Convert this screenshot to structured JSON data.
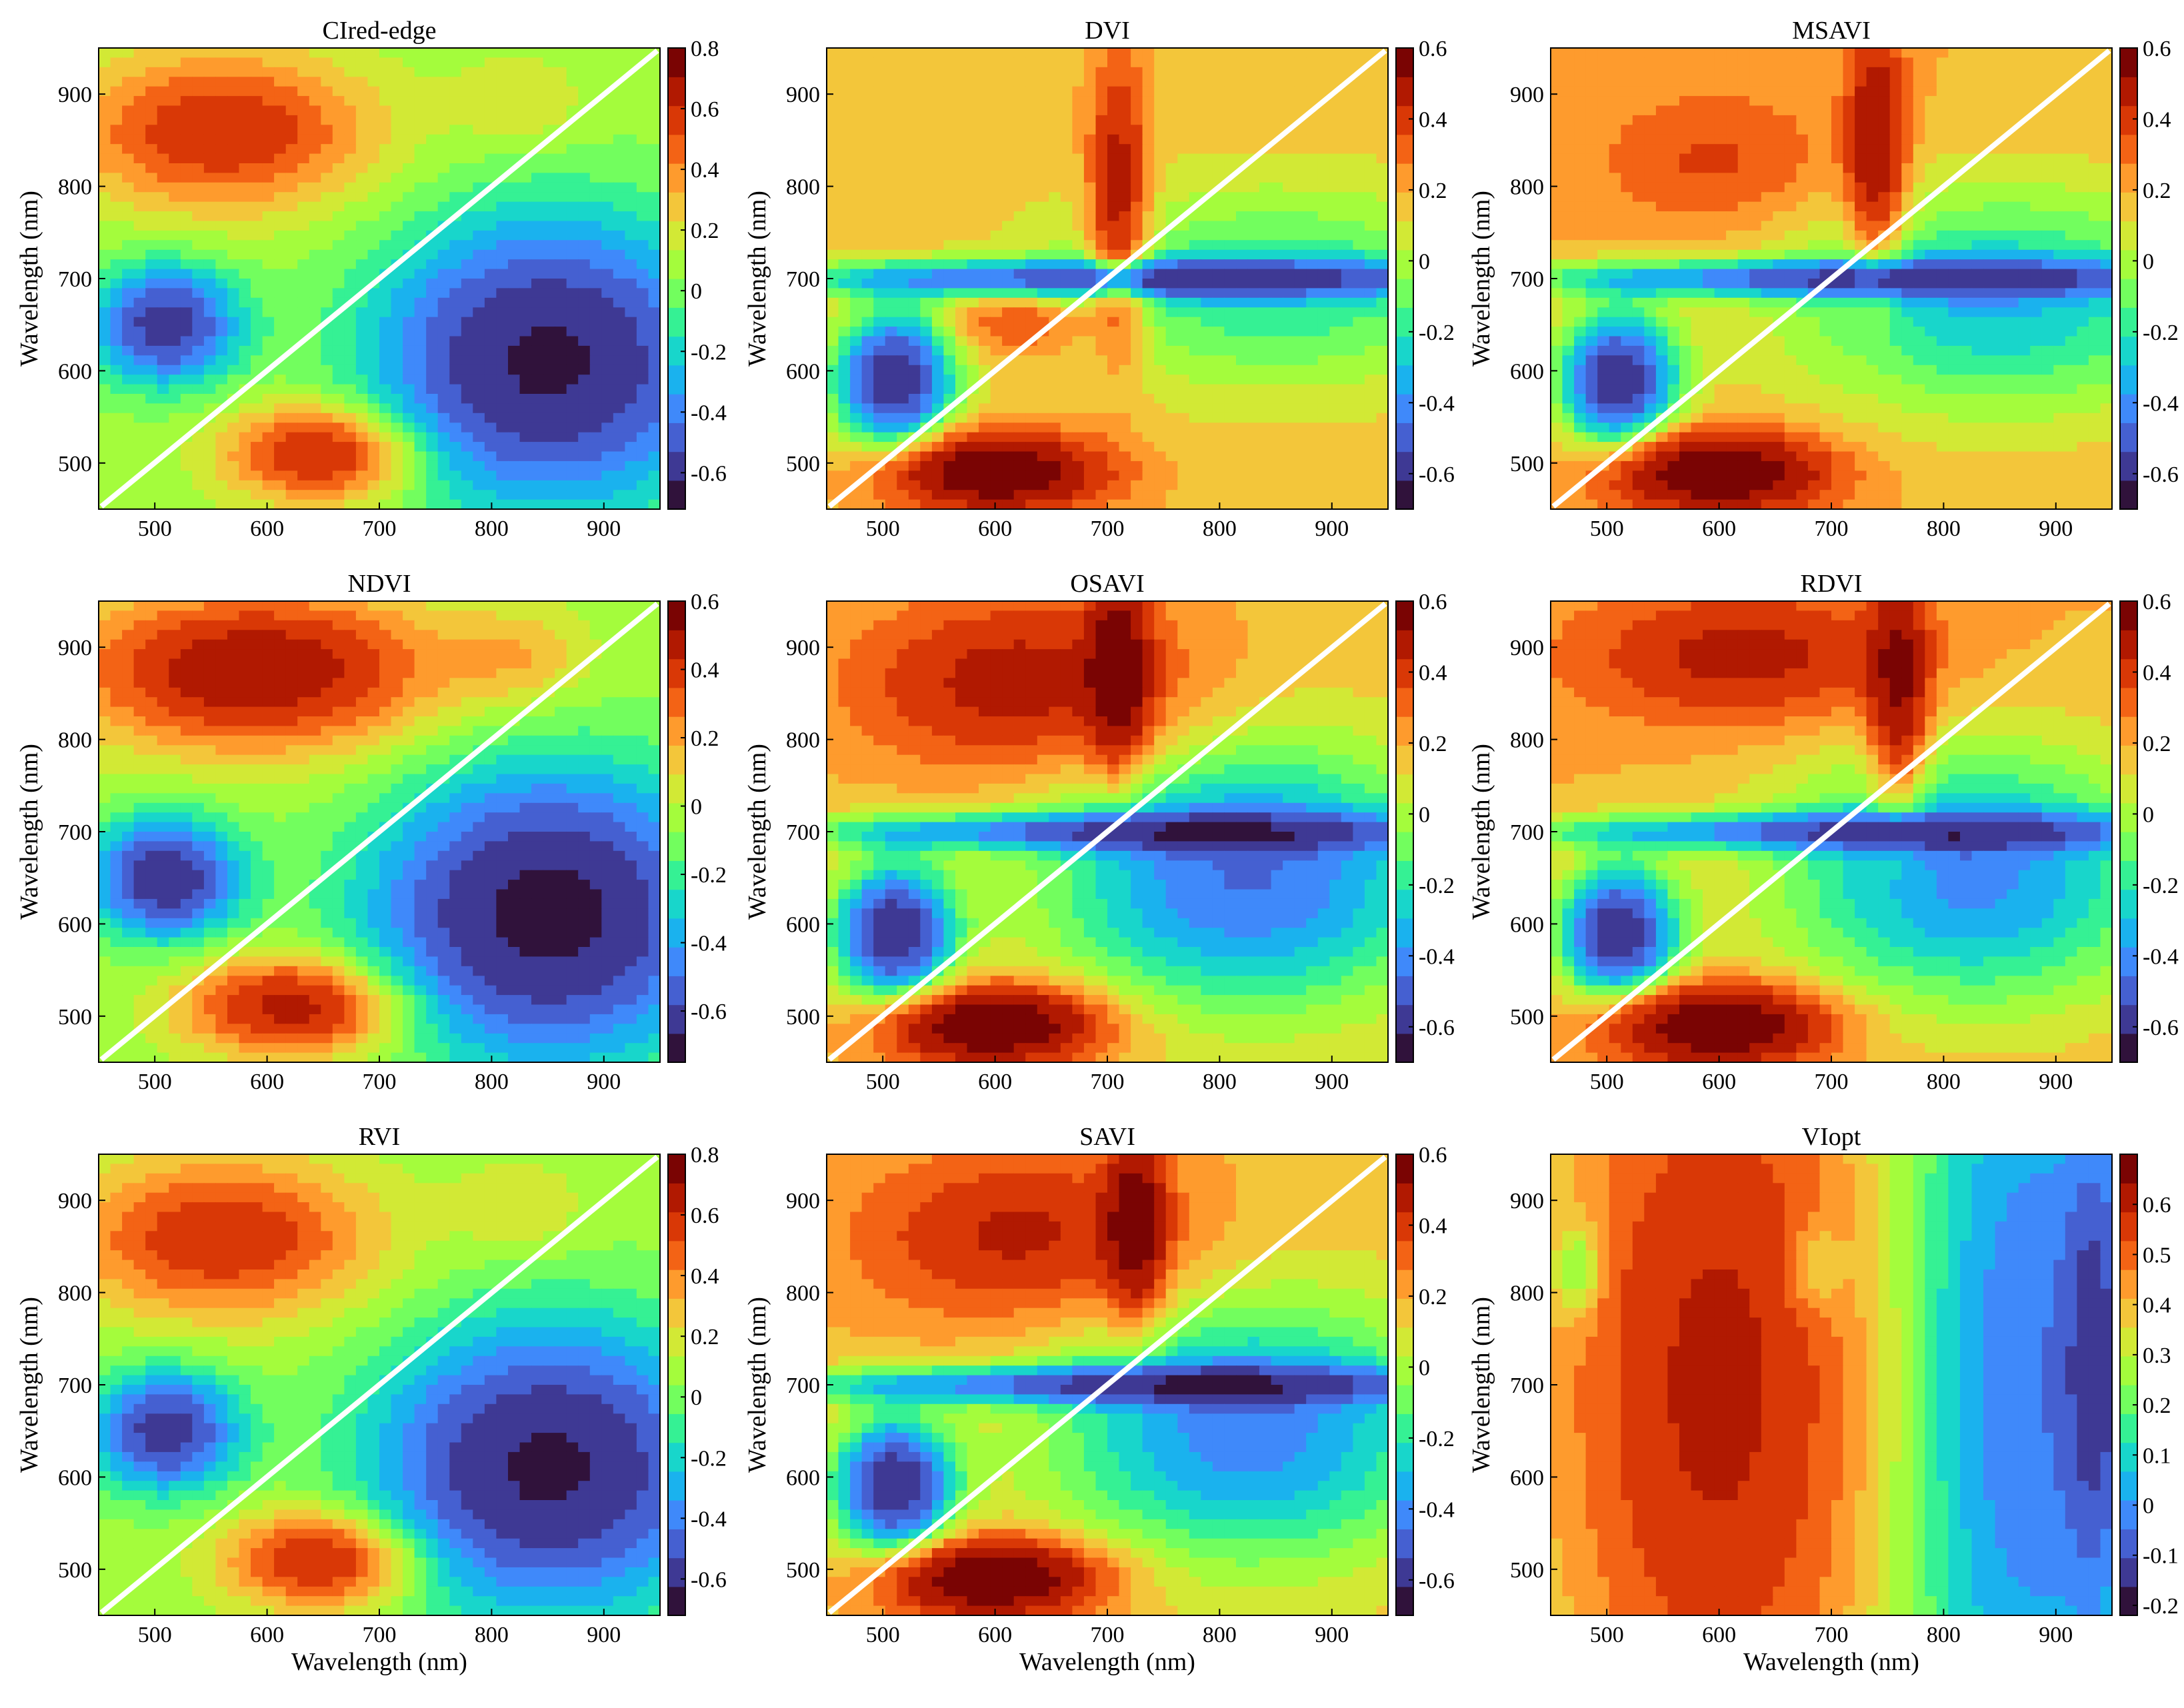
{
  "figure": {
    "x_axis_label": "Wavelength (nm)",
    "y_axis_label": "Wavelength (nm)"
  },
  "colormap": [
    "#30123b",
    "#3e3994",
    "#4560d1",
    "#3f89fa",
    "#1ab2ee",
    "#18d6cb",
    "#35f194",
    "#72fe5e",
    "#a4fc3c",
    "#d2e935",
    "#f3c63a",
    "#fe9b2d",
    "#f36315",
    "#d93806",
    "#b11901",
    "#7a0403"
  ],
  "chart_data": [
    {
      "type": "heatmap",
      "title": "CIred-edge",
      "x_ticks": [
        "500",
        "600",
        "700",
        "800",
        "900"
      ],
      "y_ticks": [
        "500",
        "600",
        "700",
        "800",
        "900"
      ],
      "xlim": [
        450,
        950
      ],
      "ylim": [
        450,
        950
      ],
      "colorbar_ticks": [
        "0.8",
        "0.6",
        "0.4",
        "0.2",
        "0",
        "-0.2",
        "-0.4",
        "-0.6"
      ],
      "colorbar_range": [
        -0.72,
        0.8
      ],
      "diagonal_separator": true,
      "show_xlabel": false,
      "show_ylabel": true,
      "regions_upper": "top-left red (~0.6), green/yellow near 800-950 x; right lower dark (~-0.7)",
      "regions_lower": "bottom orange/red (~0.5) x 480-720; left dark blue (~-0.7) y 560-720"
    },
    {
      "type": "heatmap",
      "title": "DVI",
      "x_ticks": [
        "500",
        "600",
        "700",
        "800",
        "900"
      ],
      "y_ticks": [
        "500",
        "600",
        "700",
        "800",
        "900"
      ],
      "xlim": [
        450,
        950
      ],
      "ylim": [
        450,
        950
      ],
      "colorbar_ticks": [
        "0.6",
        "0.4",
        "0.2",
        "0",
        "-0.2",
        "-0.4",
        "-0.6"
      ],
      "colorbar_range": [
        -0.7,
        0.6
      ],
      "diagonal_separator": true,
      "show_xlabel": false,
      "show_ylabel": true
    },
    {
      "type": "heatmap",
      "title": "MSAVI",
      "x_ticks": [
        "500",
        "600",
        "700",
        "800",
        "900"
      ],
      "y_ticks": [
        "500",
        "600",
        "700",
        "800",
        "900"
      ],
      "xlim": [
        450,
        950
      ],
      "ylim": [
        450,
        950
      ],
      "colorbar_ticks": [
        "0.6",
        "0.4",
        "0.2",
        "0",
        "-0.2",
        "-0.4",
        "-0.6"
      ],
      "colorbar_range": [
        -0.7,
        0.6
      ],
      "diagonal_separator": true,
      "show_xlabel": false,
      "show_ylabel": true
    },
    {
      "type": "heatmap",
      "title": "NDVI",
      "x_ticks": [
        "500",
        "600",
        "700",
        "800",
        "900"
      ],
      "y_ticks": [
        "500",
        "600",
        "700",
        "800",
        "900"
      ],
      "xlim": [
        450,
        950
      ],
      "ylim": [
        450,
        950
      ],
      "colorbar_ticks": [
        "0.6",
        "0.4",
        "0.2",
        "0",
        "-0.2",
        "-0.4",
        "-0.6"
      ],
      "colorbar_range": [
        -0.75,
        0.6
      ],
      "diagonal_separator": true,
      "show_xlabel": false,
      "show_ylabel": true
    },
    {
      "type": "heatmap",
      "title": "OSAVI",
      "x_ticks": [
        "500",
        "600",
        "700",
        "800",
        "900"
      ],
      "y_ticks": [
        "500",
        "600",
        "700",
        "800",
        "900"
      ],
      "xlim": [
        450,
        950
      ],
      "ylim": [
        450,
        950
      ],
      "colorbar_ticks": [
        "0.6",
        "0.4",
        "0.2",
        "0",
        "-0.2",
        "-0.4",
        "-0.6"
      ],
      "colorbar_range": [
        -0.7,
        0.6
      ],
      "diagonal_separator": true,
      "show_xlabel": false,
      "show_ylabel": true
    },
    {
      "type": "heatmap",
      "title": "RDVI",
      "x_ticks": [
        "500",
        "600",
        "700",
        "800",
        "900"
      ],
      "y_ticks": [
        "500",
        "600",
        "700",
        "800",
        "900"
      ],
      "xlim": [
        450,
        950
      ],
      "ylim": [
        450,
        950
      ],
      "colorbar_ticks": [
        "0.6",
        "0.4",
        "0.2",
        "0",
        "-0.2",
        "-0.4",
        "-0.6"
      ],
      "colorbar_range": [
        -0.7,
        0.6
      ],
      "diagonal_separator": true,
      "show_xlabel": false,
      "show_ylabel": true
    },
    {
      "type": "heatmap",
      "title": "RVI",
      "x_ticks": [
        "500",
        "600",
        "700",
        "800",
        "900"
      ],
      "y_ticks": [
        "500",
        "600",
        "700",
        "800",
        "900"
      ],
      "xlim": [
        450,
        950
      ],
      "ylim": [
        450,
        950
      ],
      "colorbar_ticks": [
        "0.8",
        "0.6",
        "0.4",
        "0.2",
        "0",
        "-0.2",
        "-0.4",
        "-0.6"
      ],
      "colorbar_range": [
        -0.72,
        0.8
      ],
      "diagonal_separator": true,
      "show_xlabel": true,
      "show_ylabel": true
    },
    {
      "type": "heatmap",
      "title": "SAVI",
      "x_ticks": [
        "500",
        "600",
        "700",
        "800",
        "900"
      ],
      "y_ticks": [
        "500",
        "600",
        "700",
        "800",
        "900"
      ],
      "xlim": [
        450,
        950
      ],
      "ylim": [
        450,
        950
      ],
      "colorbar_ticks": [
        "0.6",
        "0.4",
        "0.2",
        "0",
        "-0.2",
        "-0.4",
        "-0.6"
      ],
      "colorbar_range": [
        -0.7,
        0.6
      ],
      "diagonal_separator": true,
      "show_xlabel": true,
      "show_ylabel": true
    },
    {
      "type": "heatmap",
      "title": "VIopt",
      "x_ticks": [
        "500",
        "600",
        "700",
        "800",
        "900"
      ],
      "y_ticks": [
        "500",
        "600",
        "700",
        "800",
        "900"
      ],
      "xlim": [
        450,
        950
      ],
      "ylim": [
        450,
        950
      ],
      "colorbar_ticks": [
        "0.6",
        "0.5",
        "0.4",
        "0.3",
        "0.2",
        "0.1",
        "0",
        "-0.1",
        "-0.2"
      ],
      "colorbar_range": [
        -0.22,
        0.7
      ],
      "diagonal_separator": false,
      "show_xlabel": true,
      "show_ylabel": true
    }
  ]
}
